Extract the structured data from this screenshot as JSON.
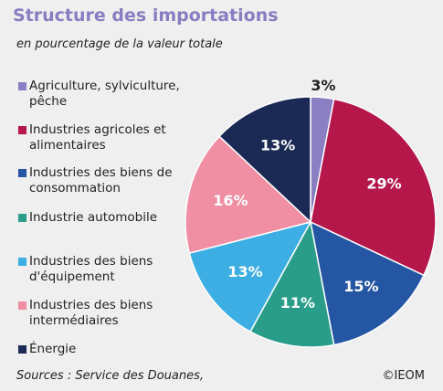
{
  "chart_data": {
    "type": "pie",
    "title": "Structure des importations",
    "subtitle": "en pourcentage de la valeur totale",
    "categories": [
      "Agriculture, sylviculture, pêche",
      "Industries agricoles et alimentaires",
      "Industries des biens de consommation",
      "Industrie automobile",
      "Industries des biens d'équipement",
      "Industries des biens intermédiaires",
      "Énergie"
    ],
    "values": [
      3,
      29,
      15,
      11,
      13,
      16,
      13
    ],
    "value_labels": [
      "3%",
      "29%",
      "15%",
      "11%",
      "13%",
      "16%",
      "13%"
    ],
    "colors": [
      "#8b7fc3",
      "#b5174b",
      "#2456a4",
      "#2a9d8a",
      "#3daee3",
      "#f08fa3",
      "#1b2a55"
    ],
    "source": "Sources : Service des Douanes,",
    "credit": "©IEOM"
  }
}
